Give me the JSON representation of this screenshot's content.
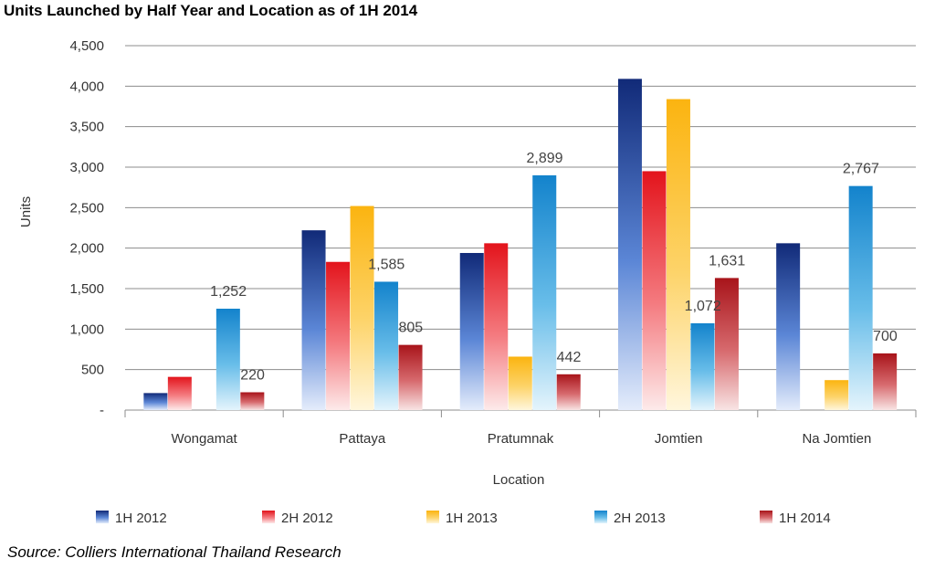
{
  "chart_data": {
    "type": "bar",
    "title": "Units Launched by Half Year and Location as of 1H 2014",
    "xlabel": "Location",
    "ylabel": "Units",
    "source": "Source: Colliers International Thailand Research",
    "categories": [
      "Wongamat",
      "Pattaya",
      "Pratumnak",
      "Jomtien",
      "Na Jomtien"
    ],
    "ylim": [
      0,
      4500
    ],
    "y_ticks": [
      0,
      500,
      1000,
      1500,
      2000,
      2500,
      3000,
      3500,
      4000,
      4500
    ],
    "y_tick_labels": [
      "-",
      "500",
      "1,000",
      "1,500",
      "2,000",
      "2,500",
      "3,000",
      "3,500",
      "4,000",
      "4,500"
    ],
    "grid": true,
    "legend_position": "bottom",
    "series": [
      {
        "name": "1H 2012",
        "color": "#1a3a8a",
        "values": [
          210,
          2220,
          1940,
          4090,
          2060
        ],
        "labels": [
          null,
          null,
          null,
          null,
          null
        ]
      },
      {
        "name": "2H 2012",
        "color": "#e8202a",
        "values": [
          410,
          1830,
          2060,
          2950,
          0
        ],
        "labels": [
          null,
          null,
          null,
          null,
          null
        ]
      },
      {
        "name": "1H 2013",
        "color": "#fbb820",
        "values": [
          0,
          2520,
          660,
          3840,
          370
        ],
        "labels": [
          null,
          null,
          null,
          null,
          null
        ]
      },
      {
        "name": "2H 2013",
        "color": "#1c8fd4",
        "values": [
          1252,
          1585,
          2899,
          1072,
          2767
        ],
        "labels": [
          "1,252",
          "1,585",
          "2,899",
          "1,072",
          "2,767"
        ]
      },
      {
        "name": "1H 2014",
        "color": "#b81f24",
        "values": [
          220,
          805,
          442,
          1631,
          700
        ],
        "labels": [
          "220",
          "805",
          "442",
          "1,631",
          "700"
        ]
      }
    ]
  }
}
